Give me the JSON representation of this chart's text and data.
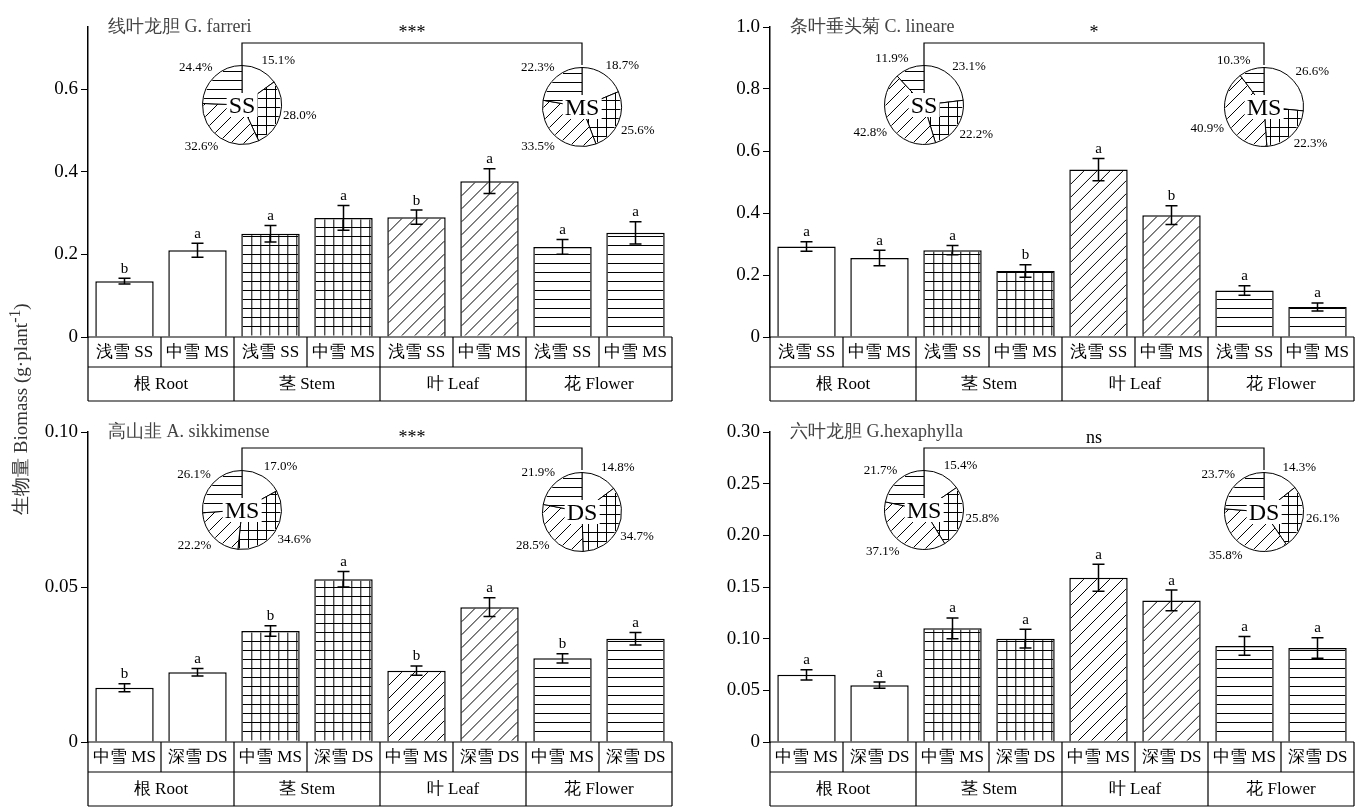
{
  "chart_data": [
    {
      "type": "bar",
      "title": "线叶龙胆 G. farreri",
      "ylabel": "生物量 Biomass (g·plant$^{-1}$)",
      "categories": [
        "浅雪 SS",
        "中雪 MS",
        "浅雪 SS",
        "中雪 MS",
        "浅雪 SS",
        "中雪 MS",
        "浅雪 SS",
        "中雪 MS"
      ],
      "values": [
        0.135,
        0.21,
        0.25,
        0.288,
        0.29,
        0.377,
        0.218,
        0.252
      ],
      "errors": [
        0.007,
        0.017,
        0.02,
        0.03,
        0.017,
        0.03,
        0.018,
        0.027
      ],
      "value_labels": [
        "b",
        "a",
        "a",
        "a",
        "b",
        "a",
        "a",
        "a"
      ],
      "colors": [
        "#ffffff",
        "#ffffff",
        "#ffffff",
        "#ffffff",
        "#ffffff",
        "#ffffff",
        "#ffffff",
        "#ffffff"
      ],
      "ylim": [
        0,
        0.75
      ],
      "yticks": [
        0,
        0.2,
        0.4,
        0.6
      ],
      "annotations": [
        "***",
        "根 Root",
        "茎 Stem",
        "叶 Leaf",
        "花 Flower"
      ]
    },
    {
      "type": "pie",
      "title": "SS",
      "categories": [
        null,
        null,
        null,
        null
      ],
      "values": [
        15.1,
        28.0,
        32.6,
        24.4
      ],
      "value_labels": [
        "15.1%",
        "28.0%",
        "32.6%",
        "24.4%"
      ],
      "colors": [
        "#ffffff",
        "#ffffff",
        "#ffffff",
        "#ffffff"
      ]
    },
    {
      "type": "pie",
      "title": "MS",
      "categories": [
        null,
        null,
        null,
        null
      ],
      "values": [
        18.7,
        25.6,
        33.5,
        22.3
      ],
      "value_labels": [
        "18.7%",
        "25.6%",
        "33.5%",
        "22.3%"
      ],
      "colors": [
        "#ffffff",
        "#ffffff",
        "#ffffff",
        "#ffffff"
      ]
    },
    {
      "type": "bar",
      "title": "条叶垂头菊 C. lineare",
      "categories": [
        "浅雪 SS",
        "中雪 MS",
        "浅雪 SS",
        "中雪 MS",
        "浅雪 SS",
        "中雪 MS",
        "浅雪 SS",
        "中雪 MS"
      ],
      "values": [
        0.292,
        0.255,
        0.28,
        0.213,
        0.54,
        0.393,
        0.15,
        0.097
      ],
      "errors": [
        0.015,
        0.025,
        0.015,
        0.02,
        0.036,
        0.03,
        0.015,
        0.013
      ],
      "value_labels": [
        "a",
        "a",
        "a",
        "b",
        "a",
        "b",
        "a",
        "a"
      ],
      "colors": [
        "#ffffff",
        "#ffffff",
        "#ffffff",
        "#ffffff",
        "#ffffff",
        "#ffffff",
        "#ffffff",
        "#ffffff"
      ],
      "ylim": [
        0,
        1.0
      ],
      "yticks": [
        0,
        0.2,
        0.4,
        0.6,
        0.8,
        {
          "value": 1.0,
          "label": "1.0"
        }
      ],
      "annotations": [
        "*",
        "根 Root",
        "茎 Stem",
        "叶 Leaf",
        "花 Flower"
      ]
    },
    {
      "type": "pie",
      "title": "SS",
      "categories": [
        null,
        null,
        null,
        null
      ],
      "values": [
        23.1,
        22.2,
        42.8,
        11.9
      ],
      "value_labels": [
        "23.1%",
        "22.2%",
        "42.8%",
        "11.9%"
      ],
      "colors": [
        "#ffffff",
        "#ffffff",
        "#ffffff",
        "#ffffff"
      ]
    },
    {
      "type": "pie",
      "title": "MS",
      "categories": [
        null,
        null,
        null,
        null
      ],
      "values": [
        26.6,
        22.3,
        40.9,
        10.3
      ],
      "value_labels": [
        "26.6%",
        "22.3%",
        "40.9%",
        "10.3%"
      ],
      "colors": [
        "#ffffff",
        "#ffffff",
        "#ffffff",
        "#ffffff"
      ]
    },
    {
      "type": "bar",
      "title": "高山韭 A. sikkimense",
      "categories": [
        "中雪 MS",
        "深雪 DS",
        "中雪 MS",
        "深雪 DS",
        "中雪 MS",
        "深雪 DS",
        "中雪 MS",
        "深雪 DS"
      ],
      "values": [
        0.0175,
        0.0225,
        0.0358,
        0.0525,
        0.023,
        0.0435,
        0.027,
        0.0333
      ],
      "errors": [
        0.0013,
        0.0012,
        0.0017,
        0.0025,
        0.0015,
        0.003,
        0.0015,
        0.002
      ],
      "value_labels": [
        "b",
        "a",
        "b",
        "a",
        "b",
        "a",
        "b",
        "a"
      ],
      "colors": [
        "#ffffff",
        "#ffffff",
        "#ffffff",
        "#ffffff",
        "#ffffff",
        "#ffffff",
        "#ffffff",
        "#ffffff"
      ],
      "ylim": [
        0,
        0.1
      ],
      "yticks": [
        0,
        0.05,
        {
          "value": 0.1,
          "label": "0.10"
        }
      ],
      "annotations": [
        "***",
        "根 Root",
        "茎 Stem",
        "叶 Leaf",
        "花 Flower"
      ]
    },
    {
      "type": "pie",
      "title": "MS",
      "categories": [
        null,
        null,
        null,
        null
      ],
      "values": [
        17.0,
        34.6,
        22.2,
        26.1
      ],
      "value_labels": [
        "17.0%",
        "34.6%",
        "22.2%",
        "26.1%"
      ],
      "colors": [
        "#ffffff",
        "#ffffff",
        "#ffffff",
        "#ffffff"
      ]
    },
    {
      "type": "pie",
      "title": "DS",
      "categories": [
        null,
        null,
        null,
        null
      ],
      "values": [
        14.8,
        34.7,
        28.5,
        21.9
      ],
      "value_labels": [
        "14.8%",
        "34.7%",
        "28.5%",
        "21.9%"
      ],
      "colors": [
        "#ffffff",
        "#ffffff",
        "#ffffff",
        "#ffffff"
      ]
    },
    {
      "type": "bar",
      "title": "六叶龙胆 G.hexaphylla",
      "categories": [
        "中雪 MS",
        "深雪 DS",
        "中雪 MS",
        "深雪 DS",
        "中雪 MS",
        "深雪 DS",
        "中雪 MS",
        "深雪 DS"
      ],
      "values": [
        0.065,
        0.055,
        0.11,
        0.1,
        0.159,
        0.137,
        0.093,
        0.091
      ],
      "errors": [
        0.005,
        0.003,
        0.01,
        0.009,
        0.013,
        0.01,
        0.009,
        0.01
      ],
      "value_labels": [
        "a",
        "a",
        "a",
        "a",
        "a",
        "a",
        "a",
        "a"
      ],
      "colors": [
        "#ffffff",
        "#ffffff",
        "#ffffff",
        "#ffffff",
        "#ffffff",
        "#ffffff",
        "#ffffff",
        "#ffffff"
      ],
      "ylim": [
        0,
        0.3
      ],
      "yticks": [
        0,
        0.05,
        {
          "value": 0.1,
          "label": "0.10"
        },
        {
          "value": 0.15,
          "label": "0.15"
        },
        {
          "value": 0.2,
          "label": "0.20"
        },
        {
          "value": 0.25,
          "label": "0.25"
        },
        {
          "value": 0.3,
          "label": "0.30"
        }
      ],
      "annotations": [
        "ns",
        "根 Root",
        "茎 Stem",
        "叶 Leaf",
        "花 Flower"
      ]
    },
    {
      "type": "pie",
      "title": "MS",
      "categories": [
        null,
        null,
        null,
        null
      ],
      "values": [
        15.4,
        25.8,
        37.1,
        21.7
      ],
      "value_labels": [
        "15.4%",
        "25.8%",
        "37.1%",
        "21.7%"
      ],
      "colors": [
        "#ffffff",
        "#ffffff",
        "#ffffff",
        "#ffffff"
      ]
    },
    {
      "type": "pie",
      "title": "DS",
      "categories": [
        null,
        null,
        null,
        null
      ],
      "values": [
        14.3,
        26.1,
        35.8,
        23.7
      ],
      "value_labels": [
        "14.3%",
        "26.1%",
        "35.8%",
        "23.7%"
      ],
      "colors": [
        "#ffffff",
        "#ffffff",
        "#ffffff",
        "#ffffff"
      ]
    }
  ]
}
